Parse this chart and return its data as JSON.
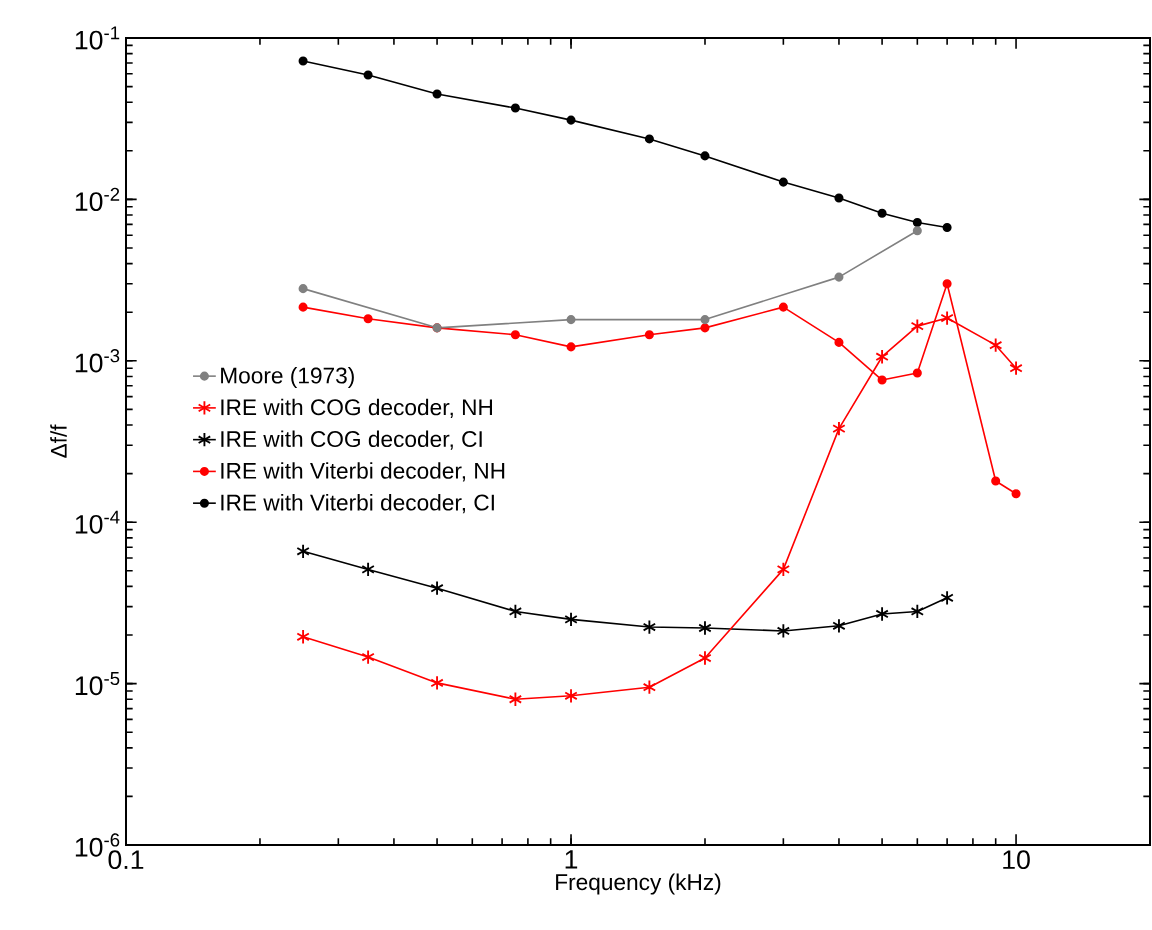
{
  "chart_data": {
    "type": "line",
    "xlabel": "Frequency (kHz)",
    "ylabel": "Δf/f",
    "log": "xy",
    "grid": false,
    "legend": "center left",
    "xlim": [
      0.1,
      20
    ],
    "xticks": [
      0.1,
      1,
      10
    ],
    "ylim": [
      1e-06,
      0.1
    ],
    "yticks": [
      {
        "value": 1e-06,
        "label": "10$^{-6}$"
      },
      {
        "value": 1e-05,
        "label": "10$^{-5}$"
      },
      {
        "value": 0.0001,
        "label": "10$^{-4}$"
      },
      {
        "value": 0.001,
        "label": "10$^{-3}$"
      },
      {
        "value": 0.01,
        "label": "10$^{-2}$"
      },
      {
        "value": 0.1,
        "label": "10$^{-1}$"
      }
    ],
    "series": [
      {
        "name": "Moore (1973)",
        "color": "#808080",
        "marker": "circle",
        "x": [
          0.25,
          0.5,
          1,
          2,
          4,
          6
        ],
        "values": [
          0.0028,
          0.0016,
          0.0018,
          0.0018,
          0.0033,
          0.0064
        ]
      },
      {
        "name": "IRE with COG decoder, NH",
        "color": "#ff0000",
        "marker": "cross",
        "x": [
          0.25,
          0.35,
          0.5,
          0.75,
          1,
          1.5,
          2,
          3,
          4,
          5,
          6,
          7,
          9,
          10
        ],
        "values": [
          1.95e-05,
          1.46e-05,
          1.01e-05,
          8e-06,
          8.4e-06,
          9.5e-06,
          1.44e-05,
          5.1e-05,
          0.00038,
          0.00106,
          0.00164,
          0.00184,
          0.00125,
          0.0009
        ]
      },
      {
        "name": "IRE with COG decoder, CI",
        "color": "#000000",
        "marker": "cross",
        "x": [
          0.25,
          0.35,
          0.5,
          0.75,
          1,
          1.5,
          2,
          3,
          4,
          5,
          6,
          7
        ],
        "values": [
          6.6e-05,
          5.1e-05,
          3.9e-05,
          2.8e-05,
          2.5e-05,
          2.24e-05,
          2.21e-05,
          2.12e-05,
          2.28e-05,
          2.7e-05,
          2.8e-05,
          3.4e-05
        ]
      },
      {
        "name": "IRE with Viterbi decoder, NH",
        "color": "#ff0000",
        "marker": "circle",
        "x": [
          0.25,
          0.35,
          0.5,
          0.75,
          1,
          1.5,
          2,
          3,
          4,
          5,
          6,
          7,
          9,
          10
        ],
        "values": [
          0.00215,
          0.00182,
          0.0016,
          0.00145,
          0.00122,
          0.00145,
          0.0016,
          0.00215,
          0.0013,
          0.00076,
          0.00084,
          0.003,
          0.00018,
          0.00015
        ]
      },
      {
        "name": "IRE with Viterbi decoder, CI",
        "color": "#000000",
        "marker": "circle",
        "x": [
          0.25,
          0.35,
          0.5,
          0.75,
          1,
          1.5,
          2,
          3,
          4,
          5,
          6,
          7
        ],
        "values": [
          0.072,
          0.059,
          0.045,
          0.0368,
          0.031,
          0.0237,
          0.0186,
          0.0128,
          0.0102,
          0.0082,
          0.0072,
          0.0067
        ]
      }
    ]
  }
}
